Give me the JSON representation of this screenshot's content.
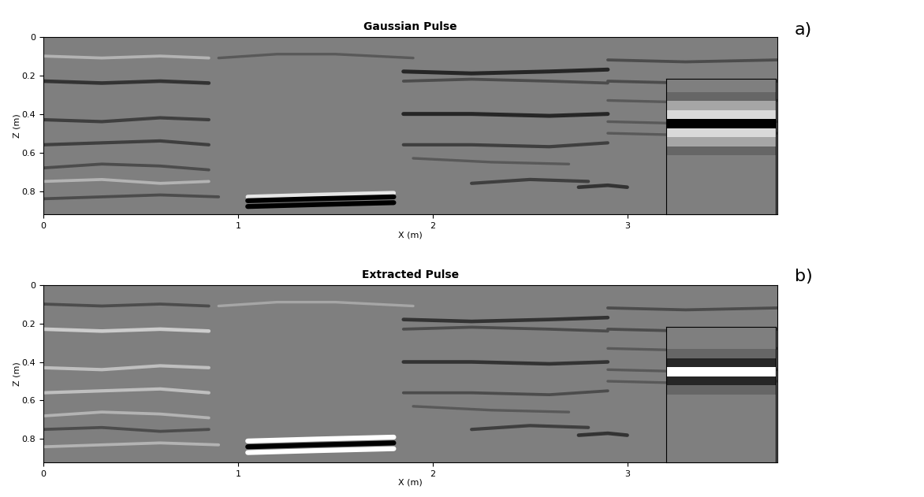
{
  "chart_data": [
    {
      "type": "reflector_section",
      "title": "Gaussian Pulse",
      "panel_label": "a)",
      "x_label": "X (m)",
      "y_label": "Z (m)",
      "xlim": [
        0,
        3.77
      ],
      "ylim": [
        0.92,
        0
      ],
      "xticks": [
        0,
        1,
        2,
        3
      ],
      "yticks": [
        0,
        0.2,
        0.4,
        0.6,
        0.8
      ],
      "clim": [
        -1,
        1
      ],
      "reflectors": [
        {
          "x": [
            0,
            0.3,
            0.6,
            0.85
          ],
          "z": [
            0.1,
            0.11,
            0.1,
            0.11
          ],
          "amplitude": 0.4
        },
        {
          "x": [
            0,
            0.3,
            0.6,
            0.85
          ],
          "z": [
            0.23,
            0.24,
            0.23,
            0.24
          ],
          "amplitude": -0.6
        },
        {
          "x": [
            0,
            0.3,
            0.6,
            0.85
          ],
          "z": [
            0.43,
            0.44,
            0.42,
            0.43
          ],
          "amplitude": -0.5
        },
        {
          "x": [
            0,
            0.3,
            0.6,
            0.85
          ],
          "z": [
            0.56,
            0.55,
            0.54,
            0.56
          ],
          "amplitude": -0.5
        },
        {
          "x": [
            0,
            0.3,
            0.6,
            0.85
          ],
          "z": [
            0.68,
            0.66,
            0.67,
            0.69
          ],
          "amplitude": -0.4
        },
        {
          "x": [
            0,
            0.3,
            0.6,
            0.85
          ],
          "z": [
            0.75,
            0.74,
            0.76,
            0.75
          ],
          "amplitude": 0.4
        },
        {
          "x": [
            0,
            0.3,
            0.6,
            0.9
          ],
          "z": [
            0.84,
            0.83,
            0.82,
            0.83
          ],
          "amplitude": -0.4
        },
        {
          "x": [
            0.9,
            1.2,
            1.5,
            1.9
          ],
          "z": [
            0.11,
            0.09,
            0.09,
            0.11
          ],
          "amplitude": -0.3
        },
        {
          "x": [
            1.05,
            1.4,
            1.8
          ],
          "z": [
            0.83,
            0.82,
            0.81
          ],
          "amplitude": 0.8
        },
        {
          "x": [
            1.05,
            1.4,
            1.8
          ],
          "z": [
            0.85,
            0.84,
            0.83
          ],
          "amplitude": -1
        },
        {
          "x": [
            1.05,
            1.4,
            1.8
          ],
          "z": [
            0.88,
            0.87,
            0.86
          ],
          "amplitude": -1
        },
        {
          "x": [
            1.85,
            2.2,
            2.6,
            2.9
          ],
          "z": [
            0.18,
            0.19,
            0.18,
            0.17
          ],
          "amplitude": -0.7
        },
        {
          "x": [
            1.85,
            2.2,
            2.6,
            2.9
          ],
          "z": [
            0.23,
            0.22,
            0.23,
            0.24
          ],
          "amplitude": -0.4
        },
        {
          "x": [
            1.85,
            2.2,
            2.6,
            2.9
          ],
          "z": [
            0.4,
            0.4,
            0.41,
            0.4
          ],
          "amplitude": -0.7
        },
        {
          "x": [
            1.85,
            2.2,
            2.6,
            2.9
          ],
          "z": [
            0.56,
            0.56,
            0.57,
            0.55
          ],
          "amplitude": -0.5
        },
        {
          "x": [
            1.9,
            2.3,
            2.7
          ],
          "z": [
            0.63,
            0.65,
            0.66
          ],
          "amplitude": -0.3
        },
        {
          "x": [
            2.2,
            2.5,
            2.8
          ],
          "z": [
            0.76,
            0.74,
            0.75
          ],
          "amplitude": -0.5
        },
        {
          "x": [
            2.75,
            2.9,
            3.0
          ],
          "z": [
            0.78,
            0.77,
            0.78
          ],
          "amplitude": -0.6
        },
        {
          "x": [
            2.9,
            3.3,
            3.77
          ],
          "z": [
            0.12,
            0.13,
            0.12
          ],
          "amplitude": -0.4
        },
        {
          "x": [
            2.9,
            3.3,
            3.77
          ],
          "z": [
            0.23,
            0.24,
            0.23
          ],
          "amplitude": -0.4
        },
        {
          "x": [
            2.9,
            3.3,
            3.77
          ],
          "z": [
            0.33,
            0.34,
            0.33
          ],
          "amplitude": -0.3
        },
        {
          "x": [
            2.9,
            3.3,
            3.77
          ],
          "z": [
            0.44,
            0.45,
            0.44
          ],
          "amplitude": -0.3
        },
        {
          "x": [
            2.9,
            3.3,
            3.77
          ],
          "z": [
            0.5,
            0.51,
            0.5
          ],
          "amplitude": -0.3
        }
      ],
      "inset": {
        "xlim": [
          1.7,
          2.05
        ],
        "ylim": [
          0.9,
          0.3
        ],
        "tick_labels": false,
        "wavelet": {
          "z": [
            0.38,
            0.42,
            0.46,
            0.5,
            0.54,
            0.58,
            0.62
          ],
          "amplitude": [
            -0.2,
            0.3,
            0.7,
            -1,
            0.7,
            0.3,
            -0.2
          ]
        }
      }
    },
    {
      "type": "reflector_section",
      "title": "Extracted Pulse",
      "panel_label": "b)",
      "x_label": "X (m)",
      "y_label": "Z (m)",
      "xlim": [
        0,
        3.77
      ],
      "ylim": [
        0.92,
        0
      ],
      "xticks": [
        0,
        1,
        2,
        3
      ],
      "yticks": [
        0,
        0.2,
        0.4,
        0.6,
        0.8
      ],
      "clim": [
        -1,
        1
      ],
      "reflectors": [
        {
          "x": [
            0,
            0.3,
            0.6,
            0.85
          ],
          "z": [
            0.1,
            0.11,
            0.1,
            0.11
          ],
          "amplitude": -0.4
        },
        {
          "x": [
            0,
            0.3,
            0.6,
            0.85
          ],
          "z": [
            0.23,
            0.24,
            0.23,
            0.24
          ],
          "amplitude": 0.6
        },
        {
          "x": [
            0,
            0.3,
            0.6,
            0.85
          ],
          "z": [
            0.43,
            0.44,
            0.42,
            0.43
          ],
          "amplitude": 0.5
        },
        {
          "x": [
            0,
            0.3,
            0.6,
            0.85
          ],
          "z": [
            0.56,
            0.55,
            0.54,
            0.56
          ],
          "amplitude": 0.5
        },
        {
          "x": [
            0,
            0.3,
            0.6,
            0.85
          ],
          "z": [
            0.68,
            0.66,
            0.67,
            0.69
          ],
          "amplitude": 0.4
        },
        {
          "x": [
            0,
            0.3,
            0.6,
            0.85
          ],
          "z": [
            0.75,
            0.74,
            0.76,
            0.75
          ],
          "amplitude": -0.4
        },
        {
          "x": [
            0,
            0.3,
            0.6,
            0.9
          ],
          "z": [
            0.84,
            0.83,
            0.82,
            0.83
          ],
          "amplitude": 0.4
        },
        {
          "x": [
            0.9,
            1.2,
            1.5,
            1.9
          ],
          "z": [
            0.11,
            0.09,
            0.09,
            0.11
          ],
          "amplitude": 0.3
        },
        {
          "x": [
            1.05,
            1.4,
            1.8
          ],
          "z": [
            0.81,
            0.8,
            0.79
          ],
          "amplitude": 1
        },
        {
          "x": [
            1.05,
            1.4,
            1.8
          ],
          "z": [
            0.84,
            0.83,
            0.82
          ],
          "amplitude": -1
        },
        {
          "x": [
            1.05,
            1.4,
            1.8
          ],
          "z": [
            0.87,
            0.86,
            0.85
          ],
          "amplitude": 1
        },
        {
          "x": [
            1.85,
            2.2,
            2.6,
            2.9
          ],
          "z": [
            0.18,
            0.19,
            0.18,
            0.17
          ],
          "amplitude": -0.6
        },
        {
          "x": [
            1.85,
            2.2,
            2.6,
            2.9
          ],
          "z": [
            0.23,
            0.22,
            0.23,
            0.24
          ],
          "amplitude": -0.4
        },
        {
          "x": [
            1.85,
            2.2,
            2.6,
            2.9
          ],
          "z": [
            0.4,
            0.4,
            0.41,
            0.4
          ],
          "amplitude": -0.6
        },
        {
          "x": [
            1.85,
            2.2,
            2.6,
            2.9
          ],
          "z": [
            0.56,
            0.56,
            0.57,
            0.55
          ],
          "amplitude": -0.4
        },
        {
          "x": [
            1.9,
            2.3,
            2.7
          ],
          "z": [
            0.63,
            0.65,
            0.66
          ],
          "amplitude": -0.3
        },
        {
          "x": [
            2.2,
            2.5,
            2.8
          ],
          "z": [
            0.75,
            0.73,
            0.74
          ],
          "amplitude": -0.5
        },
        {
          "x": [
            2.75,
            2.9,
            3.0
          ],
          "z": [
            0.78,
            0.77,
            0.78
          ],
          "amplitude": -0.6
        },
        {
          "x": [
            2.9,
            3.3,
            3.77
          ],
          "z": [
            0.12,
            0.13,
            0.12
          ],
          "amplitude": -0.4
        },
        {
          "x": [
            2.9,
            3.3,
            3.77
          ],
          "z": [
            0.23,
            0.24,
            0.23
          ],
          "amplitude": -0.4
        },
        {
          "x": [
            2.9,
            3.3,
            3.77
          ],
          "z": [
            0.33,
            0.34,
            0.33
          ],
          "amplitude": -0.3
        },
        {
          "x": [
            2.9,
            3.3,
            3.77
          ],
          "z": [
            0.44,
            0.45,
            0.44
          ],
          "amplitude": -0.3
        },
        {
          "x": [
            2.9,
            3.3,
            3.77
          ],
          "z": [
            0.5,
            0.51,
            0.5
          ],
          "amplitude": -0.3
        }
      ],
      "inset": {
        "xlim": [
          1.7,
          2.05
        ],
        "ylim": [
          0.9,
          0.3
        ],
        "tick_labels": false,
        "wavelet": {
          "z": [
            0.42,
            0.46,
            0.5,
            0.54,
            0.58
          ],
          "amplitude": [
            -0.2,
            -0.7,
            1,
            -0.7,
            -0.2
          ]
        }
      }
    }
  ]
}
